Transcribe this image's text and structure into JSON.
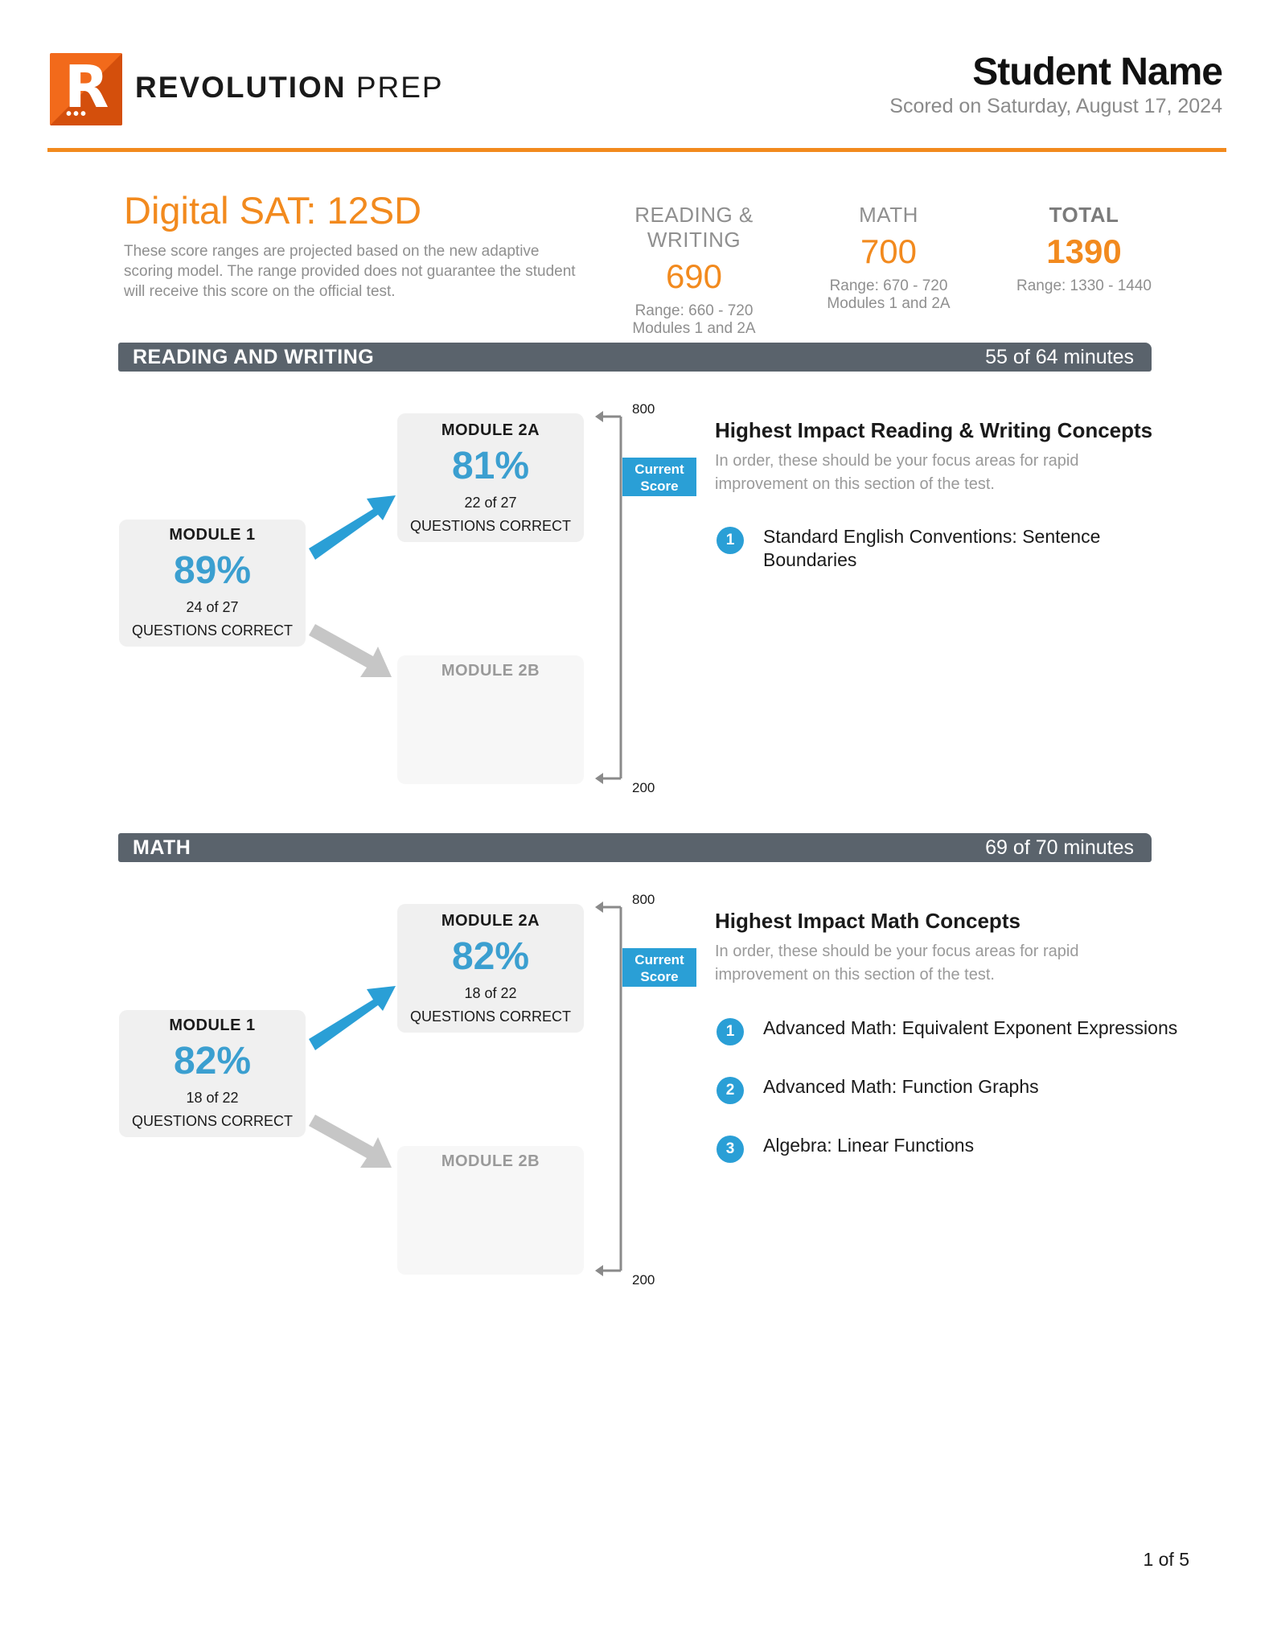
{
  "header": {
    "logo_letter": "R",
    "brand_bold": "REVOLUTION",
    "brand_light": " PREP",
    "student_name": "Student Name",
    "scored_on": "Scored on Saturday, August 17, 2024"
  },
  "summary": {
    "test_title": "Digital SAT: 12SD",
    "disclaimer": "These score ranges are projected based on the new adaptive scoring model. The range provided does not guarantee the student will receive this score on the official test.",
    "scores": [
      {
        "label": "READING & WRITING",
        "value": "690",
        "range": "Range: 660 - 720",
        "modules": "Modules 1 and 2A"
      },
      {
        "label": "MATH",
        "value": "700",
        "range": "Range: 670 - 720",
        "modules": "Modules 1 and 2A"
      },
      {
        "label": "TOTAL",
        "value": "1390",
        "range": "Range: 1330 - 1440",
        "modules": ""
      }
    ]
  },
  "sections": [
    {
      "name": "READING AND WRITING",
      "minutes": "55 of 64 minutes",
      "module1": {
        "title": "MODULE 1",
        "percent": "89%",
        "count": "24 of 27",
        "label": "QUESTIONS CORRECT"
      },
      "module2a": {
        "title": "MODULE 2A",
        "percent": "81%",
        "count": "22 of 27",
        "label": "QUESTIONS CORRECT"
      },
      "module2b": {
        "title": "MODULE 2B"
      },
      "scale_top": "800",
      "scale_bottom": "200",
      "current_score_label": "Current Score",
      "concepts_title": "Highest Impact Reading & Writing Concepts",
      "concepts_subtitle": "In order, these should be your focus areas for rapid improvement on this section of the test.",
      "concepts": [
        {
          "num": "1",
          "text": "Standard English Conventions: Sentence Boundaries"
        }
      ]
    },
    {
      "name": "MATH",
      "minutes": "69 of 70 minutes",
      "module1": {
        "title": "MODULE 1",
        "percent": "82%",
        "count": "18 of 22",
        "label": "QUESTIONS CORRECT"
      },
      "module2a": {
        "title": "MODULE 2A",
        "percent": "82%",
        "count": "18 of 22",
        "label": "QUESTIONS CORRECT"
      },
      "module2b": {
        "title": "MODULE 2B"
      },
      "scale_top": "800",
      "scale_bottom": "200",
      "current_score_label": "Current Score",
      "concepts_title": "Highest Impact Math Concepts",
      "concepts_subtitle": "In order, these should be your focus areas for rapid improvement on this section of the test.",
      "concepts": [
        {
          "num": "1",
          "text": "Advanced Math: Equivalent Exponent Expressions"
        },
        {
          "num": "2",
          "text": "Advanced Math: Function Graphs"
        },
        {
          "num": "3",
          "text": "Algebra: Linear Functions"
        }
      ]
    }
  ],
  "footer": {
    "page": "1 of 5"
  },
  "colors": {
    "accent_orange": "#f28a1e",
    "accent_blue": "#2a9fd6",
    "bar_gray": "#5a636c"
  }
}
